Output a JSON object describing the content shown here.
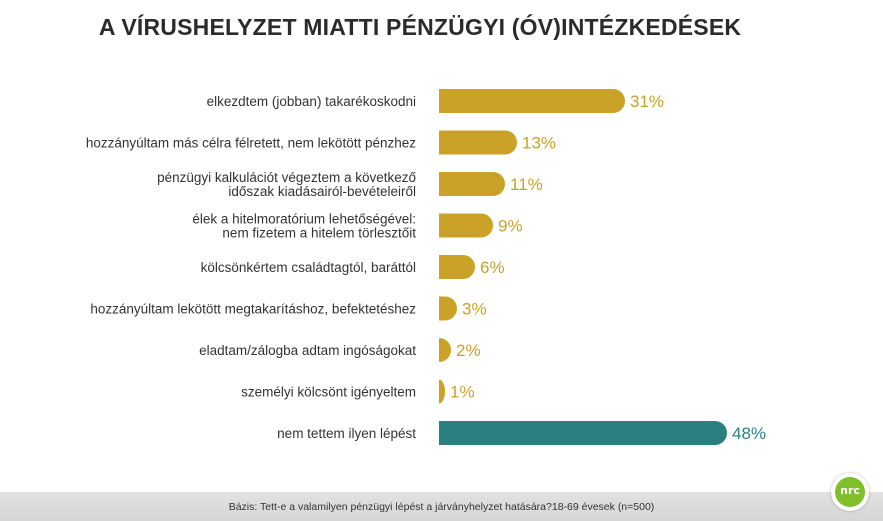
{
  "title": "A VÍRUSHELYZET MIATTI PÉNZÜGYI (ÓV)INTÉZKEDÉSEK",
  "footer": "Bázis: Tett-e a valamilyen pénzügyi lépést a járványhelyzet hatására?18-69 évesek (n=500)",
  "logo_text": "nrc",
  "colors": {
    "gold": "#c9a227",
    "teal": "#2a7f7f",
    "logo_green": "#7fbf2a"
  },
  "chart_data": {
    "type": "bar",
    "orientation": "horizontal",
    "unit": "%",
    "categories": [
      [
        "elkezdtem (jobban) takarékoskodni"
      ],
      [
        "hozzányúltam más célra félretett, nem lekötött pénzhez"
      ],
      [
        "pénzügyi kalkulációt végeztem a következő",
        "időszak kiadásairól-bevételeiről"
      ],
      [
        "élek a hitelmoratórium lehetőségével:",
        "nem fizetem a hitelem törlesztőit"
      ],
      [
        "kölcsönkértem családtagtól, baráttól"
      ],
      [
        "hozzányúltam lekötött megtakarításhoz, befektetéshez"
      ],
      [
        "eladtam/zálogba adtam ingóságokat"
      ],
      [
        "személyi kölcsönt igényeltem"
      ],
      [
        "nem tettem ilyen lépést"
      ]
    ],
    "values": [
      31,
      13,
      11,
      9,
      6,
      3,
      2,
      1,
      48
    ],
    "value_labels": [
      "31%",
      "13%",
      "11%",
      "9%",
      "6%",
      "3%",
      "2%",
      "1%",
      "48%"
    ],
    "bar_colors": [
      "#c9a227",
      "#c9a227",
      "#c9a227",
      "#c9a227",
      "#c9a227",
      "#c9a227",
      "#c9a227",
      "#c9a227",
      "#2a7f7f"
    ],
    "xlim": [
      0,
      48
    ],
    "grid": false,
    "legend": "none"
  }
}
